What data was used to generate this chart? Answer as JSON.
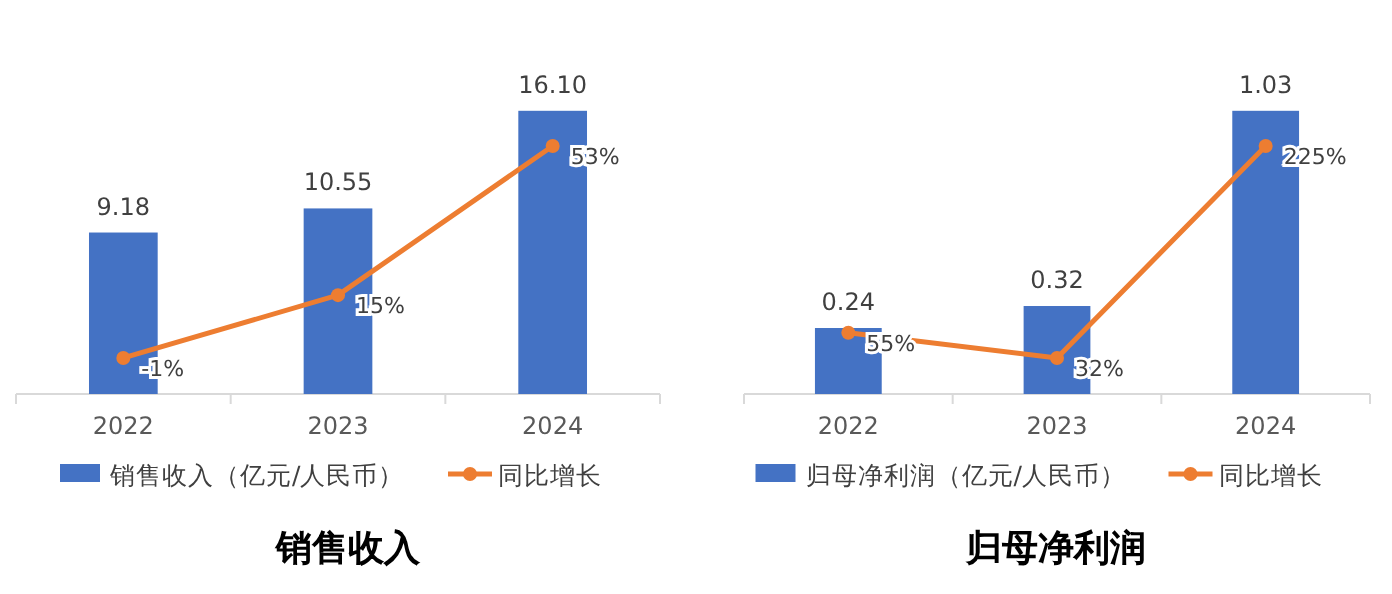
{
  "chart_data": [
    {
      "type": "bar",
      "title": "销售收入",
      "categories": [
        "2022",
        "2023",
        "2024"
      ],
      "legend": "bottom",
      "marker": "circle",
      "tick_labels": "x",
      "series": [
        {
          "name": "销售收入（亿元/人民币）",
          "color": "#4472c4",
          "values": [
            9.18,
            10.55,
            16.1
          ],
          "value_labels": [
            "9.18",
            "10.55",
            "16.10"
          ]
        },
        {
          "name": "同比增长",
          "type": "line",
          "axis": "y2",
          "color": "#ed7d31",
          "values": [
            -1,
            15,
            53
          ],
          "value_labels": [
            "-1%",
            "15%",
            "53%"
          ]
        }
      ]
    },
    {
      "type": "bar",
      "title": "归母净利润",
      "categories": [
        "2022",
        "2023",
        "2024"
      ],
      "legend": "bottom",
      "marker": "circle",
      "tick_labels": "x",
      "series": [
        {
          "name": "归母净利润（亿元/人民币）",
          "color": "#4472c4",
          "values": [
            0.24,
            0.32,
            1.03
          ],
          "value_labels": [
            "0.24",
            "0.32",
            "1.03"
          ]
        },
        {
          "name": "同比增长",
          "type": "line",
          "axis": "y2",
          "color": "#ed7d31",
          "values": [
            55,
            32,
            225
          ],
          "value_labels": [
            "55%",
            "32%",
            "225%"
          ]
        }
      ]
    }
  ]
}
